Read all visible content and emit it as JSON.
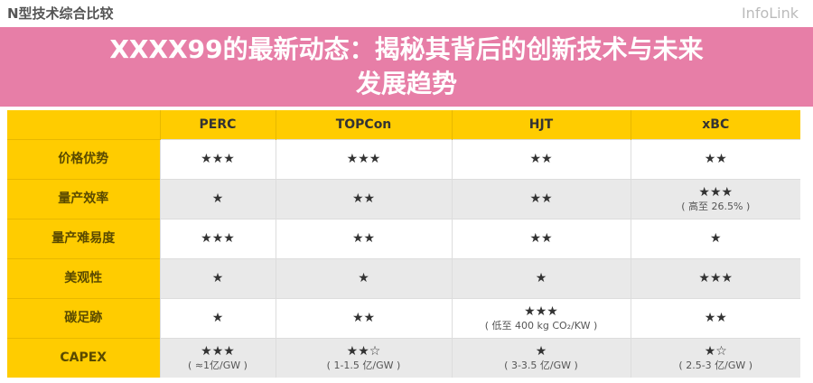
{
  "title": "N型技术综合比较",
  "columns": [
    "",
    "PERC",
    "TOPCon",
    "HJT",
    "xBC"
  ],
  "rows": [
    {
      "label": "价格优势",
      "cells": [
        {
          "stars": "★★★"
        },
        {
          "stars": "★★★"
        },
        {
          "stars": "★★"
        },
        {
          "stars": "★★"
        }
      ]
    },
    {
      "label": "量产效率",
      "cells": [
        {
          "stars": "★"
        },
        {
          "stars": "★★"
        },
        {
          "stars": "★★"
        },
        {
          "stars": "★★★",
          "note": "( 高至 26.5% )"
        }
      ]
    },
    {
      "label": "量产难易度",
      "cells": [
        {
          "stars": "★★★"
        },
        {
          "stars": "★★"
        },
        {
          "stars": "★★"
        },
        {
          "stars": "★"
        }
      ]
    },
    {
      "label": "美观性",
      "cells": [
        {
          "stars": "★"
        },
        {
          "stars": "★"
        },
        {
          "stars": "★"
        },
        {
          "stars": "★★★"
        }
      ]
    },
    {
      "label": "碳足跡",
      "cells": [
        {
          "stars": "★"
        },
        {
          "stars": "★★"
        },
        {
          "stars": "★★★",
          "note": "( 低至 400 kg CO₂/KW )"
        },
        {
          "stars": "★★"
        }
      ]
    },
    {
      "label": "CAPEX",
      "cells": [
        {
          "stars": "★★★",
          "note": "( ≈1亿/GW )"
        },
        {
          "stars": "★★☆",
          "note": "( 1-1.5 亿/GW )"
        },
        {
          "stars": "★",
          "note": "( 3-3.5 亿/GW )"
        },
        {
          "stars": "★☆",
          "note": "( 2.5-3 亿/GW )"
        }
      ]
    }
  ],
  "watermark": "InfoLink",
  "banner": {
    "line1": "XXXX99的最新动态：揭秘其背后的创新技术与未来",
    "line2": "发展趋势"
  },
  "colors": {
    "header": "#ffcc00",
    "banner": "#e26294"
  }
}
